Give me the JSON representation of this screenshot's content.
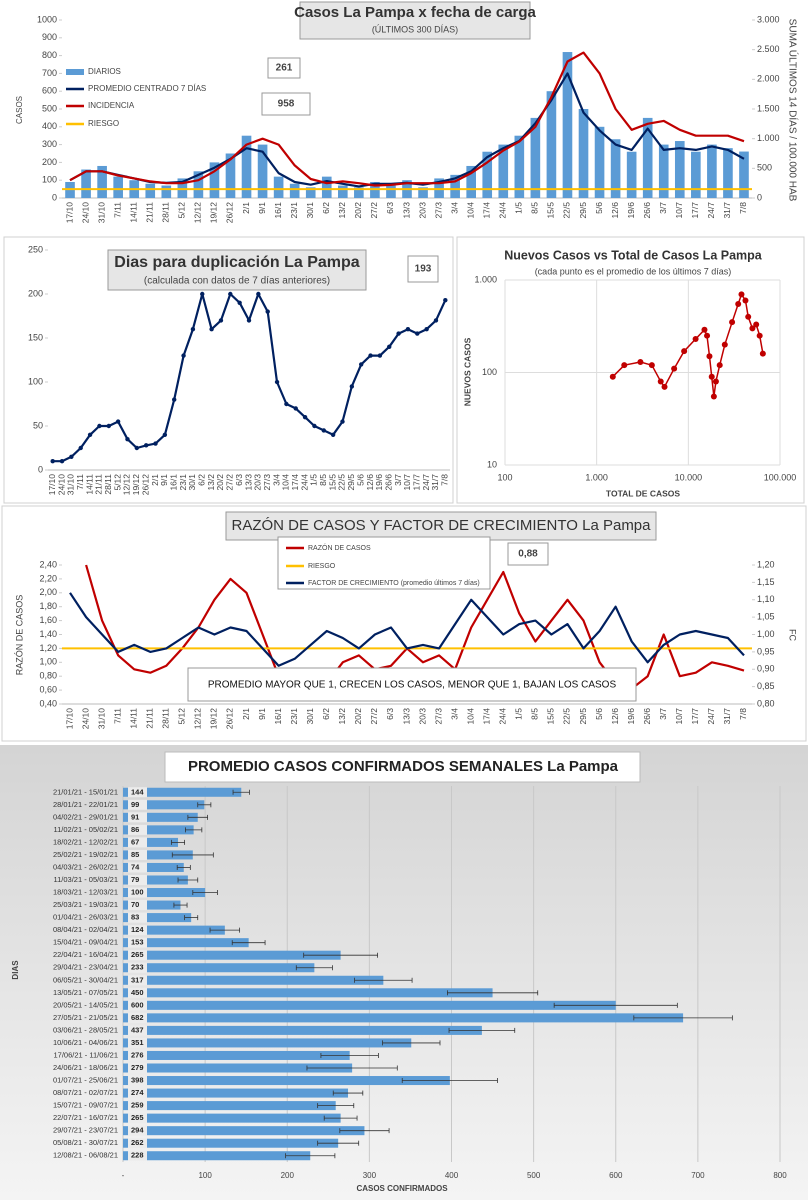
{
  "chart_data": [
    {
      "type": "combo",
      "title": "Casos  La Pampa  x fecha de carga",
      "subtitle": "(ÚLTIMOS 300 DÍAS)",
      "ylabel": "CASOS",
      "y2label": "SUMA ÚLTIMOS 14 DÍAS / 100.000 HAB",
      "categories": [
        "17/10",
        "24/10",
        "31/10",
        "7/11",
        "14/11",
        "21/11",
        "28/11",
        "5/12",
        "12/12",
        "19/12",
        "26/12",
        "2/1",
        "9/1",
        "16/1",
        "23/1",
        "30/1",
        "6/2",
        "13/2",
        "20/2",
        "27/2",
        "6/3",
        "13/3",
        "20/3",
        "27/3",
        "3/4",
        "10/4",
        "17/4",
        "24/4",
        "1/5",
        "8/5",
        "15/5",
        "22/5",
        "29/5",
        "5/6",
        "12/6",
        "19/6",
        "26/6",
        "3/7",
        "10/7",
        "17/7",
        "24/7",
        "31/7",
        "7/8"
      ],
      "series": [
        {
          "name": "DIARIOS",
          "type": "bar",
          "color": "#5b9bd5",
          "values": [
            90,
            160,
            180,
            120,
            100,
            80,
            70,
            110,
            150,
            200,
            250,
            350,
            300,
            120,
            80,
            60,
            120,
            70,
            60,
            90,
            70,
            100,
            60,
            110,
            130,
            180,
            260,
            300,
            350,
            450,
            600,
            820,
            500,
            400,
            330,
            260,
            450,
            300,
            320,
            260,
            300,
            280,
            261
          ]
        },
        {
          "name": "PROMEDIO CENTRADO 7 DÍAS",
          "type": "line",
          "color": "#002060",
          "values": [
            100,
            150,
            150,
            130,
            110,
            90,
            85,
            90,
            130,
            170,
            220,
            280,
            260,
            140,
            90,
            75,
            95,
            80,
            65,
            80,
            80,
            85,
            75,
            90,
            110,
            150,
            230,
            280,
            320,
            420,
            550,
            700,
            480,
            380,
            300,
            270,
            390,
            270,
            280,
            270,
            290,
            270,
            220
          ]
        },
        {
          "name": "INCIDENCIA",
          "type": "line",
          "color": "#c00000",
          "axis": "y2",
          "values": [
            300,
            450,
            450,
            380,
            330,
            280,
            250,
            250,
            300,
            450,
            650,
            900,
            1000,
            900,
            550,
            320,
            250,
            280,
            250,
            210,
            220,
            250,
            250,
            250,
            280,
            420,
            600,
            800,
            950,
            1200,
            1700,
            2300,
            2450,
            2100,
            1500,
            1150,
            1250,
            1300,
            1150,
            1050,
            1050,
            1050,
            958
          ]
        },
        {
          "name": "RIESGO",
          "type": "hline",
          "color": "#ffc000",
          "axis": "y2",
          "value": 150
        }
      ],
      "annotations": [
        "261",
        "958"
      ],
      "ylim": [
        0,
        1000
      ],
      "yticks": [
        0,
        100,
        200,
        300,
        400,
        500,
        600,
        700,
        800,
        900,
        1000
      ],
      "y2lim": [
        0,
        3000
      ],
      "y2ticks": [
        0,
        500,
        {
          "value": 1000,
          "label": "1.000"
        },
        {
          "value": 1500,
          "label": "1.500"
        },
        {
          "value": 2000,
          "label": "2.000"
        },
        {
          "value": 2500,
          "label": "2.500"
        },
        {
          "value": 3000,
          "label": "3.000"
        }
      ],
      "grid": false,
      "legend": "upper left"
    },
    {
      "type": "line",
      "title": "Dias para duplicación La Pampa",
      "subtitle": "(calculada con datos de 7 días anteriores)",
      "categories": [
        "17/10",
        "24/10",
        "31/10",
        "7/11",
        "14/11",
        "21/11",
        "28/11",
        "5/12",
        "12/12",
        "19/12",
        "26/12",
        "2/1",
        "9/1",
        "16/1",
        "23/1",
        "30/1",
        "6/2",
        "13/2",
        "20/2",
        "27/2",
        "6/3",
        "13/3",
        "20/3",
        "27/3",
        "3/4",
        "10/4",
        "17/4",
        "24/4",
        "1/5",
        "8/5",
        "15/5",
        "22/5",
        "29/5",
        "5/6",
        "12/6",
        "19/6",
        "26/6",
        "3/7",
        "10/7",
        "17/7",
        "24/7",
        "31/7",
        "7/8"
      ],
      "series": [
        {
          "color": "#002060",
          "values": [
            10,
            10,
            15,
            25,
            40,
            50,
            50,
            55,
            35,
            25,
            28,
            30,
            40,
            80,
            130,
            160,
            200,
            160,
            170,
            200,
            190,
            170,
            200,
            180,
            100,
            75,
            70,
            60,
            50,
            45,
            40,
            55,
            95,
            120,
            130,
            130,
            140,
            155,
            160,
            155,
            160,
            170,
            193
          ]
        }
      ],
      "annotations": [
        "193"
      ],
      "ylim": [
        0,
        250
      ],
      "yticks": [
        0,
        50,
        100,
        150,
        200,
        250
      ],
      "grid": false
    },
    {
      "type": "scatter",
      "title": "Nuevos Casos vs Total de Casos La Pampa",
      "subtitle": "(cada punto es el promedio de los últimos 7 días)",
      "xlabel": "TOTAL DE CASOS",
      "ylabel": "NUEVOS CASOS",
      "x": [
        1500,
        2000,
        3000,
        4000,
        5000,
        5500,
        7000,
        9000,
        12000,
        15000,
        16000,
        17000,
        18000,
        19000,
        20000,
        22000,
        25000,
        30000,
        35000,
        38000,
        42000,
        45000,
        50000,
        55000,
        60000,
        65000
      ],
      "y": [
        90,
        120,
        130,
        120,
        80,
        70,
        110,
        170,
        230,
        290,
        250,
        150,
        90,
        55,
        80,
        120,
        200,
        350,
        550,
        700,
        600,
        400,
        300,
        330,
        250,
        160
      ],
      "color": "#c00000",
      "xscale": "log",
      "yscale": "log",
      "xlim": [
        100,
        100000
      ],
      "xticks": [
        100,
        {
          "value": 1000,
          "label": "1.000"
        },
        {
          "value": 10000,
          "label": "10.000"
        },
        {
          "value": 100000,
          "label": "100.000"
        }
      ],
      "ylim": [
        10,
        1000
      ],
      "yticks": [
        10,
        100,
        {
          "value": 1000,
          "label": "1.000"
        }
      ],
      "grid": true
    },
    {
      "type": "line",
      "title": "RAZÓN DE CASOS Y FACTOR DE CRECIMIENTO La Pampa",
      "ylabel": "RAZÓN DE CASOS",
      "y2label": "FC",
      "categories": [
        "17/10",
        "24/10",
        "31/10",
        "7/11",
        "14/11",
        "21/11",
        "28/11",
        "5/12",
        "12/12",
        "19/12",
        "26/12",
        "2/1",
        "9/1",
        "16/1",
        "23/1",
        "30/1",
        "6/2",
        "13/2",
        "20/2",
        "27/2",
        "6/3",
        "13/3",
        "20/3",
        "27/3",
        "3/4",
        "10/4",
        "17/4",
        "24/4",
        "1/5",
        "8/5",
        "15/5",
        "22/5",
        "29/5",
        "5/6",
        "12/6",
        "19/6",
        "26/6",
        "3/7",
        "10/7",
        "17/7",
        "24/7",
        "31/7",
        "7/8"
      ],
      "series": [
        {
          "name": "RAZÓN DE CASOS",
          "type": "line",
          "color": "#c00000",
          "values": [
            null,
            2.4,
            1.6,
            1.1,
            0.9,
            0.85,
            0.95,
            1.2,
            1.5,
            1.9,
            2.2,
            2.0,
            1.4,
            0.8,
            0.6,
            0.45,
            0.7,
            1.0,
            1.1,
            0.9,
            0.95,
            1.2,
            1.0,
            1.1,
            0.9,
            1.5,
            1.9,
            2.3,
            1.7,
            1.3,
            1.6,
            1.9,
            1.6,
            1.0,
            0.7,
            0.62,
            0.8,
            1.4,
            0.8,
            0.85,
            1.0,
            0.95,
            0.88
          ]
        },
        {
          "name": "RIESGO",
          "type": "hline",
          "color": "#ffc000",
          "value": 1.2
        },
        {
          "name": "FACTOR DE CRECIMIENTO (promedio últimos 7 días)",
          "type": "line",
          "color": "#002060",
          "axis": "y2",
          "values": [
            1.12,
            1.05,
            1.0,
            0.95,
            0.97,
            0.95,
            0.96,
            0.99,
            1.02,
            1.0,
            1.02,
            1.01,
            0.96,
            0.91,
            0.93,
            0.97,
            1.01,
            0.99,
            0.96,
            1.0,
            1.02,
            0.96,
            0.97,
            0.96,
            1.03,
            1.1,
            1.05,
            1.0,
            1.03,
            1.04,
            1.0,
            1.03,
            0.96,
            1.01,
            1.08,
            0.98,
            0.92,
            0.97,
            1.0,
            1.01,
            1.0,
            0.99,
            0.94
          ]
        }
      ],
      "annotations": [
        "0,88",
        "PROMEDIO MAYOR QUE 1, CRECEN LOS CASOS, MENOR QUE 1, BAJAN LOS CASOS"
      ],
      "ylim": [
        0.4,
        2.4
      ],
      "yticks": [
        {
          "value": 0.4,
          "label": "0,40"
        },
        {
          "value": 0.6,
          "label": "0,60"
        },
        {
          "value": 0.8,
          "label": "0,80"
        },
        {
          "value": 1.0,
          "label": "1,00"
        },
        {
          "value": 1.2,
          "label": "1,20"
        },
        {
          "value": 1.4,
          "label": "1,40"
        },
        {
          "value": 1.6,
          "label": "1,60"
        },
        {
          "value": 1.8,
          "label": "1,80"
        },
        {
          "value": 2.0,
          "label": "2,00"
        },
        {
          "value": 2.2,
          "label": "2,20"
        },
        {
          "value": 2.4,
          "label": "2,40"
        }
      ],
      "y2lim": [
        0.8,
        1.2
      ],
      "y2ticks": [
        {
          "value": 0.8,
          "label": "0,80"
        },
        {
          "value": 0.85,
          "label": "0,85"
        },
        {
          "value": 0.9,
          "label": "0,90"
        },
        {
          "value": 0.95,
          "label": "0,95"
        },
        {
          "value": 1.0,
          "label": "1,00"
        },
        {
          "value": 1.05,
          "label": "1,05"
        },
        {
          "value": 1.1,
          "label": "1,10"
        },
        {
          "value": 1.15,
          "label": "1,15"
        },
        {
          "value": 1.2,
          "label": "1,20"
        }
      ],
      "grid": false,
      "legend": "upper center"
    },
    {
      "type": "hbar",
      "title": "PROMEDIO CASOS CONFIRMADOS SEMANALES La Pampa",
      "xlabel": "CASOS CONFIRMADOS",
      "ylabel": "DIAS",
      "categories": [
        "21/01/21 - 15/01/21",
        "28/01/21 - 22/01/21",
        "04/02/21 - 29/01/21",
        "11/02/21 - 05/02/21",
        "18/02/21 - 12/02/21",
        "25/02/21 - 19/02/21",
        "04/03/21 - 26/02/21",
        "11/03/21 - 05/03/21",
        "18/03/21 - 12/03/21",
        "25/03/21 - 19/03/21",
        "01/04/21 - 26/03/21",
        "08/04/21 - 02/04/21",
        "15/04/21 - 09/04/21",
        "22/04/21 - 16/04/21",
        "29/04/21 - 23/04/21",
        "06/05/21 - 30/04/21",
        "13/05/21 - 07/05/21",
        "20/05/21 - 14/05/21",
        "27/05/21 - 21/05/21",
        "03/06/21 - 28/05/21",
        "10/06/21 - 04/06/21",
        "17/06/21 - 11/06/21",
        "24/06/21 - 18/06/21",
        "01/07/21 - 25/06/21",
        "08/07/21 - 02/07/21",
        "15/07/21 - 09/07/21",
        "22/07/21 - 16/07/21",
        "29/07/21 - 23/07/21",
        "05/08/21 - 30/07/21",
        "12/08/21 - 06/08/21"
      ],
      "values": [
        144,
        99,
        91,
        86,
        67,
        85,
        74,
        79,
        100,
        70,
        83,
        124,
        153,
        265,
        233,
        317,
        450,
        600,
        682,
        437,
        351,
        276,
        279,
        398,
        274,
        259,
        265,
        294,
        262,
        228
      ],
      "errors": [
        10,
        8,
        12,
        10,
        8,
        25,
        8,
        12,
        15,
        8,
        8,
        18,
        20,
        45,
        22,
        35,
        55,
        75,
        60,
        40,
        35,
        35,
        55,
        58,
        18,
        22,
        20,
        30,
        25,
        30
      ],
      "color": "#5b9bd5",
      "xlim": [
        0,
        800
      ],
      "xticks": [
        {
          "value": 0,
          "label": "-"
        },
        100,
        200,
        300,
        400,
        500,
        600,
        700,
        800
      ],
      "grid": true
    }
  ]
}
